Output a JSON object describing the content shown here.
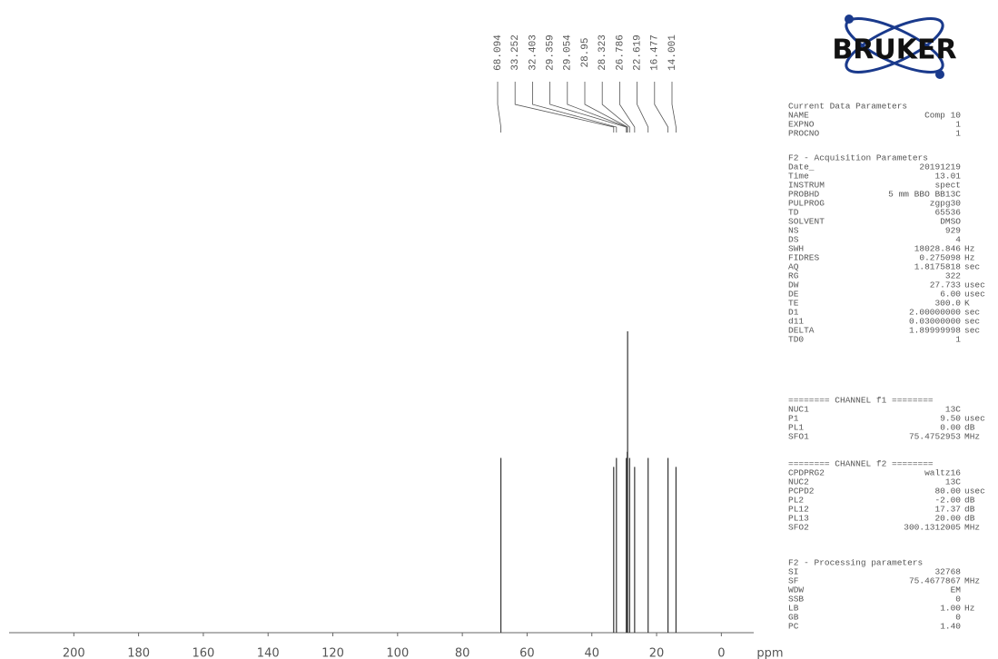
{
  "chart_data": {
    "type": "spectrum",
    "x_label": "ppm",
    "x": [
      68.094,
      33.252,
      32.403,
      29.359,
      29.054,
      28.95,
      28.323,
      26.786,
      22.619,
      16.477,
      14.001
    ],
    "values": [
      58,
      55,
      58,
      58,
      60,
      100,
      58,
      55,
      58,
      58,
      55
    ],
    "color": "#333333",
    "xlim": [
      220,
      -10
    ],
    "ylim": [
      0,
      100
    ],
    "xticks": [
      200,
      180,
      160,
      140,
      120,
      100,
      80,
      60,
      40,
      20,
      0
    ]
  },
  "logo": "BRUKER",
  "parameters": [
    {
      "title": "Current Data Parameters",
      "rows": [
        [
          "NAME",
          "Comp 10"
        ],
        [
          "EXPNO",
          "1"
        ],
        [
          "PROCNO",
          "1"
        ]
      ]
    },
    {
      "title": "F2 - Acquisition Parameters",
      "rows": [
        [
          "Date_",
          "20191219"
        ],
        [
          "Time",
          "13.01"
        ],
        [
          "INSTRUM",
          "spect"
        ],
        [
          "PROBHD",
          "5 mm BBO BB13C"
        ],
        [
          "PULPROG",
          "zgpg30"
        ],
        [
          "TD",
          "65536"
        ],
        [
          "SOLVENT",
          "DMSO"
        ],
        [
          "NS",
          "929"
        ],
        [
          "DS",
          "4"
        ],
        [
          "SWH",
          "18028.846",
          "Hz"
        ],
        [
          "FIDRES",
          "0.275098",
          "Hz"
        ],
        [
          "AQ",
          "1.8175818",
          "sec"
        ],
        [
          "RG",
          "322"
        ],
        [
          "DW",
          "27.733",
          "usec"
        ],
        [
          "DE",
          "6.00",
          "usec"
        ],
        [
          "TE",
          "300.0",
          "K"
        ],
        [
          "D1",
          "2.00000000",
          "sec"
        ],
        [
          "d11",
          "0.03000000",
          "sec"
        ],
        [
          "DELTA",
          "1.89999998",
          "sec"
        ],
        [
          "TD0",
          "1"
        ]
      ]
    },
    {
      "title": "======== CHANNEL f1 ========",
      "rows": [
        [
          "NUC1",
          "13C"
        ],
        [
          "P1",
          "9.50",
          "usec"
        ],
        [
          "PL1",
          "0.00",
          "dB"
        ],
        [
          "SFO1",
          "75.4752953",
          "MHz"
        ]
      ]
    },
    {
      "title": "======== CHANNEL f2 ========",
      "rows": [
        [
          "CPDPRG2",
          "waltz16"
        ],
        [
          "NUC2",
          "13C"
        ],
        [
          "PCPD2",
          "80.00",
          "usec"
        ],
        [
          "PL2",
          "-2.00",
          "dB"
        ],
        [
          "PL12",
          "17.37",
          "dB"
        ],
        [
          "PL13",
          "20.00",
          "dB"
        ],
        [
          "SFO2",
          "300.1312005",
          "MHz"
        ]
      ]
    },
    {
      "title": "F2 - Processing parameters",
      "rows": [
        [
          "SI",
          "32768"
        ],
        [
          "SF",
          "75.4677867",
          "MHz"
        ],
        [
          "WDW",
          "EM"
        ],
        [
          "SSB",
          "0"
        ],
        [
          "LB",
          "1.00",
          "Hz"
        ],
        [
          "GB",
          "0"
        ],
        [
          "PC",
          "1.40"
        ]
      ]
    }
  ]
}
